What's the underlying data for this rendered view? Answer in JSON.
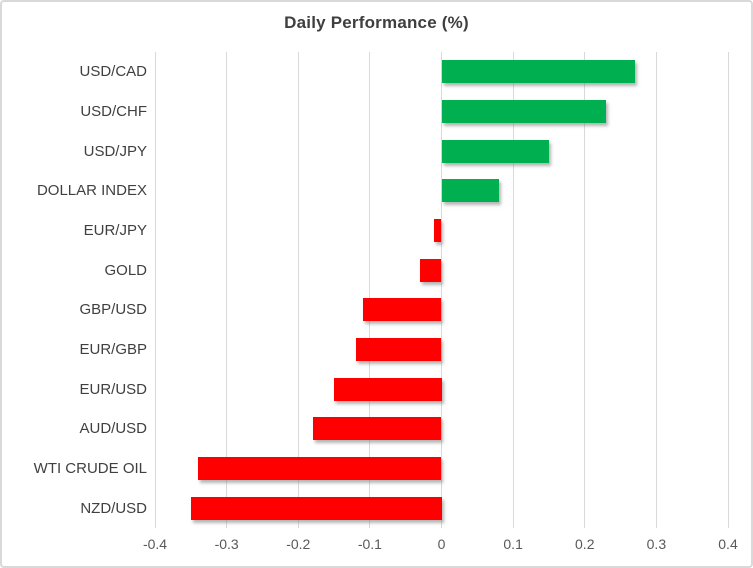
{
  "chart_data": {
    "type": "bar",
    "orientation": "horizontal",
    "title": "Daily Performance (%)",
    "categories": [
      "USD/CAD",
      "USD/CHF",
      "USD/JPY",
      "DOLLAR INDEX",
      "EUR/JPY",
      "GOLD",
      "GBP/USD",
      "EUR/GBP",
      "EUR/USD",
      "AUD/USD",
      "WTI CRUDE OIL",
      "NZD/USD"
    ],
    "values": [
      0.27,
      0.23,
      0.15,
      0.08,
      -0.01,
      -0.03,
      -0.11,
      -0.12,
      -0.15,
      -0.18,
      -0.34,
      -0.35
    ],
    "xlabel": "",
    "ylabel": "",
    "xlim": [
      -0.4,
      0.4
    ],
    "xticks": [
      -0.4,
      -0.3,
      -0.2,
      -0.1,
      0,
      0.1,
      0.2,
      0.3,
      0.4
    ],
    "xtick_labels": [
      "-0.4",
      "-0.3",
      "-0.2",
      "-0.1",
      "0",
      "0.1",
      "0.2",
      "0.3",
      "0.4"
    ],
    "grid": true,
    "legend": false,
    "colors": {
      "positive_bar": "#00B050",
      "negative_bar": "#FF0000",
      "gridline": "#D9D9D9",
      "title_text": "#3F3F3F",
      "category_text": "#404040",
      "tick_text": "#595959",
      "frame_border": "#D9D9D9",
      "background": "#FFFFFF"
    }
  }
}
